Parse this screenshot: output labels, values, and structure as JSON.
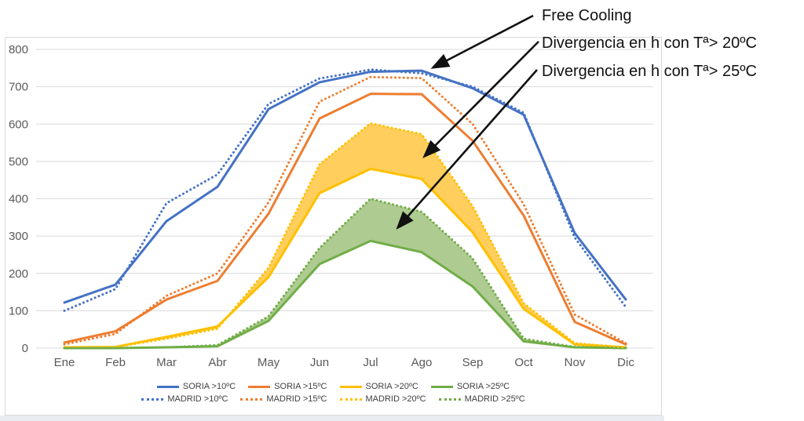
{
  "chart_data": {
    "type": "line",
    "title": "",
    "xlabel": "",
    "ylabel": "",
    "categories": [
      "Ene",
      "Feb",
      "Mar",
      "Abr",
      "May",
      "Jun",
      "Jul",
      "Ago",
      "Sep",
      "Oct",
      "Nov",
      "Dic"
    ],
    "yticks": [
      0,
      100,
      200,
      300,
      400,
      500,
      600,
      700,
      800
    ],
    "ylim": [
      0,
      800
    ],
    "grid": "horizontal",
    "gridline_color": "#D9D9D9",
    "axis_label_color": "#595959",
    "legend_position": "bottom",
    "series": [
      {
        "name": "SORIA >10ºC",
        "color": "#4472C4",
        "style": "solid",
        "values": [
          122,
          170,
          340,
          432,
          640,
          712,
          740,
          743,
          696,
          625,
          308,
          130
        ]
      },
      {
        "name": "SORIA >15ºC",
        "color": "#ED7D31",
        "style": "solid",
        "values": [
          15,
          45,
          130,
          180,
          360,
          615,
          681,
          680,
          555,
          355,
          70,
          10
        ]
      },
      {
        "name": "SORIA >20ºC",
        "color": "#FFC000",
        "style": "solid",
        "values": [
          2,
          3,
          30,
          58,
          190,
          415,
          480,
          453,
          310,
          105,
          10,
          2
        ]
      },
      {
        "name": "SORIA >25ºC",
        "color": "#70AD47",
        "style": "solid",
        "values": [
          0,
          0,
          2,
          5,
          73,
          225,
          287,
          257,
          165,
          18,
          2,
          0
        ]
      },
      {
        "name": "MADRID >10ºC",
        "color": "#4472C4",
        "style": "dotted",
        "values": [
          100,
          158,
          388,
          465,
          654,
          722,
          746,
          736,
          700,
          630,
          296,
          110
        ]
      },
      {
        "name": "MADRID >15ºC",
        "color": "#ED7D31",
        "style": "dotted",
        "values": [
          10,
          38,
          140,
          200,
          390,
          660,
          726,
          723,
          600,
          385,
          90,
          13
        ]
      },
      {
        "name": "MADRID >20ºC",
        "color": "#FFC000",
        "style": "dotted",
        "values": [
          2,
          3,
          25,
          52,
          215,
          492,
          602,
          573,
          380,
          120,
          13,
          2
        ]
      },
      {
        "name": "MADRID >25ºC",
        "color": "#70AD47",
        "style": "dotted",
        "values": [
          0,
          0,
          2,
          8,
          85,
          268,
          400,
          365,
          240,
          25,
          3,
          0
        ]
      }
    ],
    "areas": [
      {
        "name": "divergence-area-20C",
        "upper": "MADRID >20ºC",
        "lower": "SORIA >20ºC",
        "fill": "#FFCE5C"
      },
      {
        "name": "divergence-area-25C",
        "upper": "MADRID >25ºC",
        "lower": "SORIA >25ºC",
        "fill": "#AECB91"
      }
    ]
  },
  "annotations": {
    "free_cooling": "Free Cooling",
    "div20": "Divergencia en h con Tª> 20ºC",
    "div25": "Divergencia en h con Tª> 25ºC"
  }
}
